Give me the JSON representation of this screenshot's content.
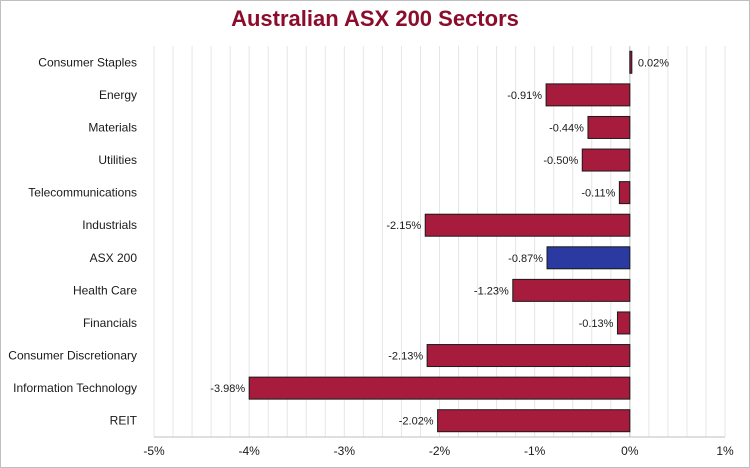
{
  "chart_data": {
    "type": "bar",
    "orientation": "horizontal",
    "title": "Australian ASX 200 Sectors",
    "xlabel": "",
    "ylabel": "",
    "xlim": [
      -5,
      1
    ],
    "x_ticks": [
      "-5%",
      "-4%",
      "-3%",
      "-2%",
      "-1%",
      "0%",
      "1%"
    ],
    "grid": "vertical minor",
    "categories": [
      "Consumer Staples",
      "Energy",
      "Materials",
      "Utilities",
      "Telecommunications",
      "Industrials",
      "ASX 200",
      "Health Care",
      "Financials",
      "Consumer Discretionary",
      "Information Technology",
      "REIT"
    ],
    "values": [
      0.02,
      -0.91,
      -0.44,
      -0.5,
      -0.11,
      -2.15,
      -0.87,
      -1.23,
      -0.13,
      -2.13,
      -3.98,
      -2.02
    ],
    "bar_extent": [
      0.02,
      -0.88,
      -0.44,
      -0.5,
      -0.11,
      -2.15,
      -0.87,
      -1.23,
      -0.13,
      -2.13,
      -4.0,
      -2.02
    ],
    "data_labels": [
      "0.02%",
      "-0.91%",
      "-0.44%",
      "-0.50%",
      "-0.11%",
      "-2.15%",
      "-0.87%",
      "-1.23%",
      "-0.13%",
      "-2.13%",
      "-3.98%",
      "-2.02%"
    ],
    "colors": {
      "default": "#a71c3c",
      "highlight": "#2b3aa0",
      "highlight_category": "ASX 200",
      "title": "#8b0d2b"
    }
  }
}
